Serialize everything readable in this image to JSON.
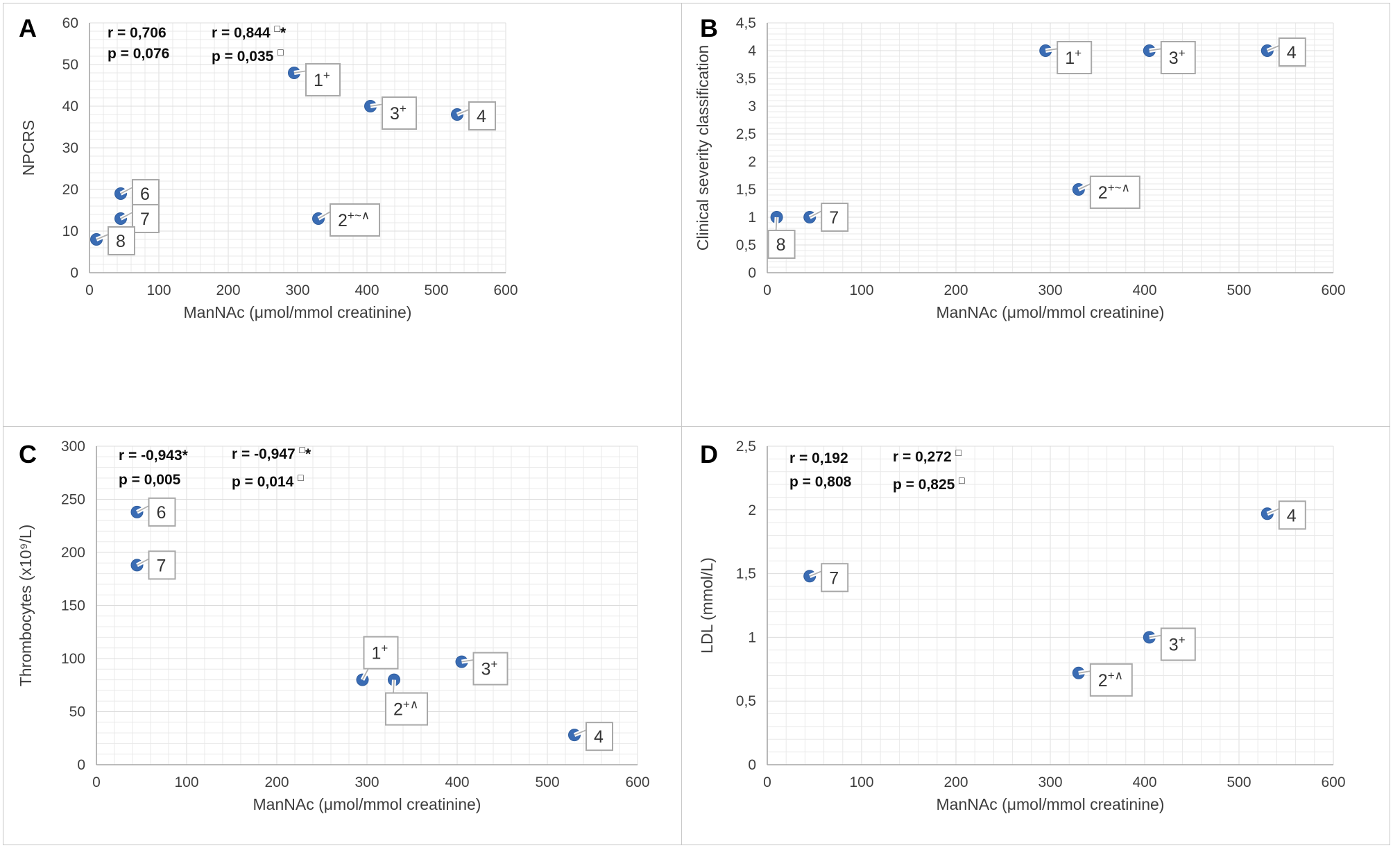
{
  "figure": {
    "point_color": "#3a6cb4",
    "point_edge_color": "#2f5d9e",
    "grid_minor_color": "#e9e9e9",
    "grid_major_color": "#dcdcdc",
    "axis_color": "#a6a6a6",
    "callout_border_color": "#a8a8a8",
    "callout_fill": "#ffffff",
    "panel_border_color": "#c9c9c9"
  },
  "chart_data": [
    {
      "panel": "A",
      "type": "scatter",
      "xlabel": "ManNAc (μmol/mmol creatinine)",
      "ylabel": "NPCRS",
      "xlim": [
        0,
        600
      ],
      "ylim": [
        0,
        60
      ],
      "x_major": 100,
      "x_minor": 20,
      "y_major": 10,
      "y_minor": 2,
      "grid": true,
      "xticks_values": [
        0,
        100,
        200,
        300,
        400,
        500,
        600
      ],
      "xticks_labels": [
        "0",
        "100",
        "200",
        "300",
        "400",
        "500",
        "600"
      ],
      "yticks_values": [
        0,
        10,
        20,
        30,
        40,
        50,
        60
      ],
      "yticks_labels": [
        "0",
        "10",
        "20",
        "30",
        "40",
        "50",
        "60"
      ],
      "stats": [
        {
          "lines": [
            {
              "text": "r = 0,706",
              "sup": "",
              "suffix": ""
            },
            {
              "text": "p = 0,076",
              "sup": "",
              "suffix": ""
            }
          ]
        },
        {
          "lines": [
            {
              "text": "r = 0,844 ",
              "sup": "□",
              "suffix": "*"
            },
            {
              "text": "p = 0,035 ",
              "sup": "□",
              "suffix": ""
            }
          ]
        }
      ],
      "points": [
        {
          "x": 295,
          "y": 48,
          "base": "1",
          "sup": "+",
          "placement": "right",
          "dy": 10
        },
        {
          "x": 405,
          "y": 40,
          "base": "3",
          "sup": "+",
          "placement": "right",
          "dy": 10
        },
        {
          "x": 530,
          "y": 38,
          "base": "4",
          "sup": "",
          "placement": "right",
          "dy": 2
        },
        {
          "x": 45,
          "y": 19,
          "base": "6",
          "sup": "",
          "placement": "right",
          "dy": 0
        },
        {
          "x": 45,
          "y": 13,
          "base": "7",
          "sup": "",
          "placement": "right",
          "dy": 0
        },
        {
          "x": 10,
          "y": 8,
          "base": "8",
          "sup": "",
          "placement": "right",
          "dy": 2
        },
        {
          "x": 330,
          "y": 13,
          "base": "2",
          "sup": "+~∧",
          "placement": "right",
          "dy": 2
        }
      ]
    },
    {
      "panel": "B",
      "type": "scatter",
      "xlabel": "ManNAc (μmol/mmol creatinine)",
      "ylabel": "Clinical severity classification",
      "xlim": [
        0,
        600
      ],
      "ylim": [
        0,
        4.5
      ],
      "x_major": 100,
      "x_minor": 20,
      "y_major": 0.5,
      "y_minor": 0.1,
      "grid": true,
      "xticks_values": [
        0,
        100,
        200,
        300,
        400,
        500,
        600
      ],
      "xticks_labels": [
        "0",
        "100",
        "200",
        "300",
        "400",
        "500",
        "600"
      ],
      "yticks_values": [
        0,
        0.5,
        1,
        1.5,
        2,
        2.5,
        3,
        3.5,
        4,
        4.5
      ],
      "yticks_labels": [
        "0",
        "0,5",
        "1",
        "1,5",
        "2",
        "2,5",
        "3",
        "3,5",
        "4",
        "4,5"
      ],
      "stats": [],
      "points": [
        {
          "x": 295,
          "y": 4,
          "base": "1",
          "sup": "+",
          "placement": "right",
          "dy": 10
        },
        {
          "x": 405,
          "y": 4,
          "base": "3",
          "sup": "+",
          "placement": "right",
          "dy": 10
        },
        {
          "x": 530,
          "y": 4,
          "base": "4",
          "sup": "",
          "placement": "right",
          "dy": 2
        },
        {
          "x": 330,
          "y": 1.5,
          "base": "2",
          "sup": "+~∧",
          "placement": "right",
          "dy": 4
        },
        {
          "x": 45,
          "y": 1,
          "base": "7",
          "sup": "",
          "placement": "right",
          "dy": 0
        },
        {
          "x": 10,
          "y": 1,
          "base": "8",
          "sup": "",
          "placement": "below",
          "dy": 0
        }
      ]
    },
    {
      "panel": "C",
      "type": "scatter",
      "xlabel": "ManNAc (μmol/mmol creatinine)",
      "ylabel": "Thrombocytes (x10⁹/L)",
      "xlim": [
        0,
        600
      ],
      "ylim": [
        0,
        300
      ],
      "x_major": 100,
      "x_minor": 20,
      "y_major": 50,
      "y_minor": 10,
      "grid": true,
      "xticks_values": [
        0,
        100,
        200,
        300,
        400,
        500,
        600
      ],
      "xticks_labels": [
        "0",
        "100",
        "200",
        "300",
        "400",
        "500",
        "600"
      ],
      "yticks_values": [
        0,
        50,
        100,
        150,
        200,
        250,
        300
      ],
      "yticks_labels": [
        "0",
        "50",
        "100",
        "150",
        "200",
        "250",
        "300"
      ],
      "stats": [
        {
          "lines": [
            {
              "text": "r = -0,943",
              "sup": "",
              "suffix": "*"
            },
            {
              "text": "p = 0,005",
              "sup": "",
              "suffix": ""
            }
          ]
        },
        {
          "lines": [
            {
              "text": "r = -0,947 ",
              "sup": "□",
              "suffix": "*"
            },
            {
              "text": "p = 0,014 ",
              "sup": "□",
              "suffix": ""
            }
          ]
        }
      ],
      "points": [
        {
          "x": 45,
          "y": 238,
          "base": "6",
          "sup": "",
          "placement": "right",
          "dy": 0
        },
        {
          "x": 45,
          "y": 188,
          "base": "7",
          "sup": "",
          "placement": "right",
          "dy": 0
        },
        {
          "x": 295,
          "y": 80,
          "base": "1",
          "sup": "+",
          "placement": "above",
          "dy": 0
        },
        {
          "x": 330,
          "y": 80,
          "base": "2",
          "sup": "+∧",
          "placement": "below",
          "dy": 0
        },
        {
          "x": 405,
          "y": 97,
          "base": "3",
          "sup": "+",
          "placement": "right",
          "dy": 10
        },
        {
          "x": 530,
          "y": 28,
          "base": "4",
          "sup": "",
          "placement": "right",
          "dy": 2
        }
      ]
    },
    {
      "panel": "D",
      "type": "scatter",
      "xlabel": "ManNAc (μmol/mmol creatinine)",
      "ylabel": "LDL (mmol/L)",
      "xlim": [
        0,
        600
      ],
      "ylim": [
        0,
        2.5
      ],
      "x_major": 100,
      "x_minor": 20,
      "y_major": 0.5,
      "y_minor": 0.1,
      "grid": true,
      "xticks_values": [
        0,
        100,
        200,
        300,
        400,
        500,
        600
      ],
      "xticks_labels": [
        "0",
        "100",
        "200",
        "300",
        "400",
        "500",
        "600"
      ],
      "yticks_values": [
        0,
        0.5,
        1,
        1.5,
        2,
        2.5
      ],
      "yticks_labels": [
        "0",
        "0,5",
        "1",
        "1,5",
        "2",
        "2,5"
      ],
      "stats": [
        {
          "lines": [
            {
              "text": "r = 0,192",
              "sup": "",
              "suffix": ""
            },
            {
              "text": "p = 0,808",
              "sup": "",
              "suffix": ""
            }
          ]
        },
        {
          "lines": [
            {
              "text": "r = 0,272 ",
              "sup": "□",
              "suffix": ""
            },
            {
              "text": "p = 0,825 ",
              "sup": "□",
              "suffix": ""
            }
          ]
        }
      ],
      "points": [
        {
          "x": 45,
          "y": 1.48,
          "base": "7",
          "sup": "",
          "placement": "right",
          "dy": 2
        },
        {
          "x": 330,
          "y": 0.72,
          "base": "2",
          "sup": "+∧",
          "placement": "right",
          "dy": 10
        },
        {
          "x": 405,
          "y": 1.0,
          "base": "3",
          "sup": "+",
          "placement": "right",
          "dy": 10
        },
        {
          "x": 530,
          "y": 1.97,
          "base": "4",
          "sup": "",
          "placement": "right",
          "dy": 2
        }
      ]
    }
  ]
}
